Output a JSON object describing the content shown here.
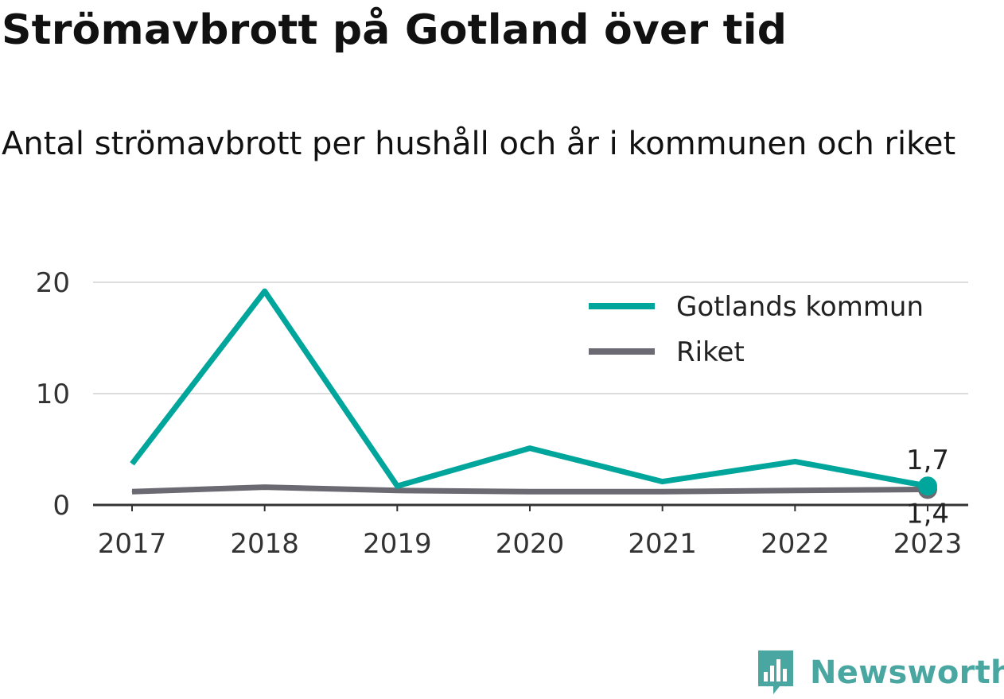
{
  "title": "Strömavbrott på Gotland över tid",
  "subtitle": "Antal strömavbrott per hushåll och år i kommunen och riket",
  "brand": "Newsworthy",
  "colors": {
    "gotland": "#00a59b",
    "riket": "#6b6a72",
    "brand": "#49a6a0"
  },
  "chart_data": {
    "type": "line",
    "categories": [
      "2017",
      "2018",
      "2019",
      "2020",
      "2021",
      "2022",
      "2023"
    ],
    "series": [
      {
        "name": "Gotlands kommun",
        "values": [
          3.7,
          19.2,
          1.7,
          5.1,
          2.1,
          3.9,
          1.7
        ]
      },
      {
        "name": "Riket",
        "values": [
          1.2,
          1.6,
          1.3,
          1.2,
          1.2,
          1.3,
          1.4
        ]
      }
    ],
    "end_labels": [
      "1,7",
      "1,4"
    ],
    "y_ticks": [
      "0",
      "10",
      "20"
    ],
    "ylim": [
      0,
      20
    ],
    "legend_position": "top-right",
    "grid": true
  }
}
